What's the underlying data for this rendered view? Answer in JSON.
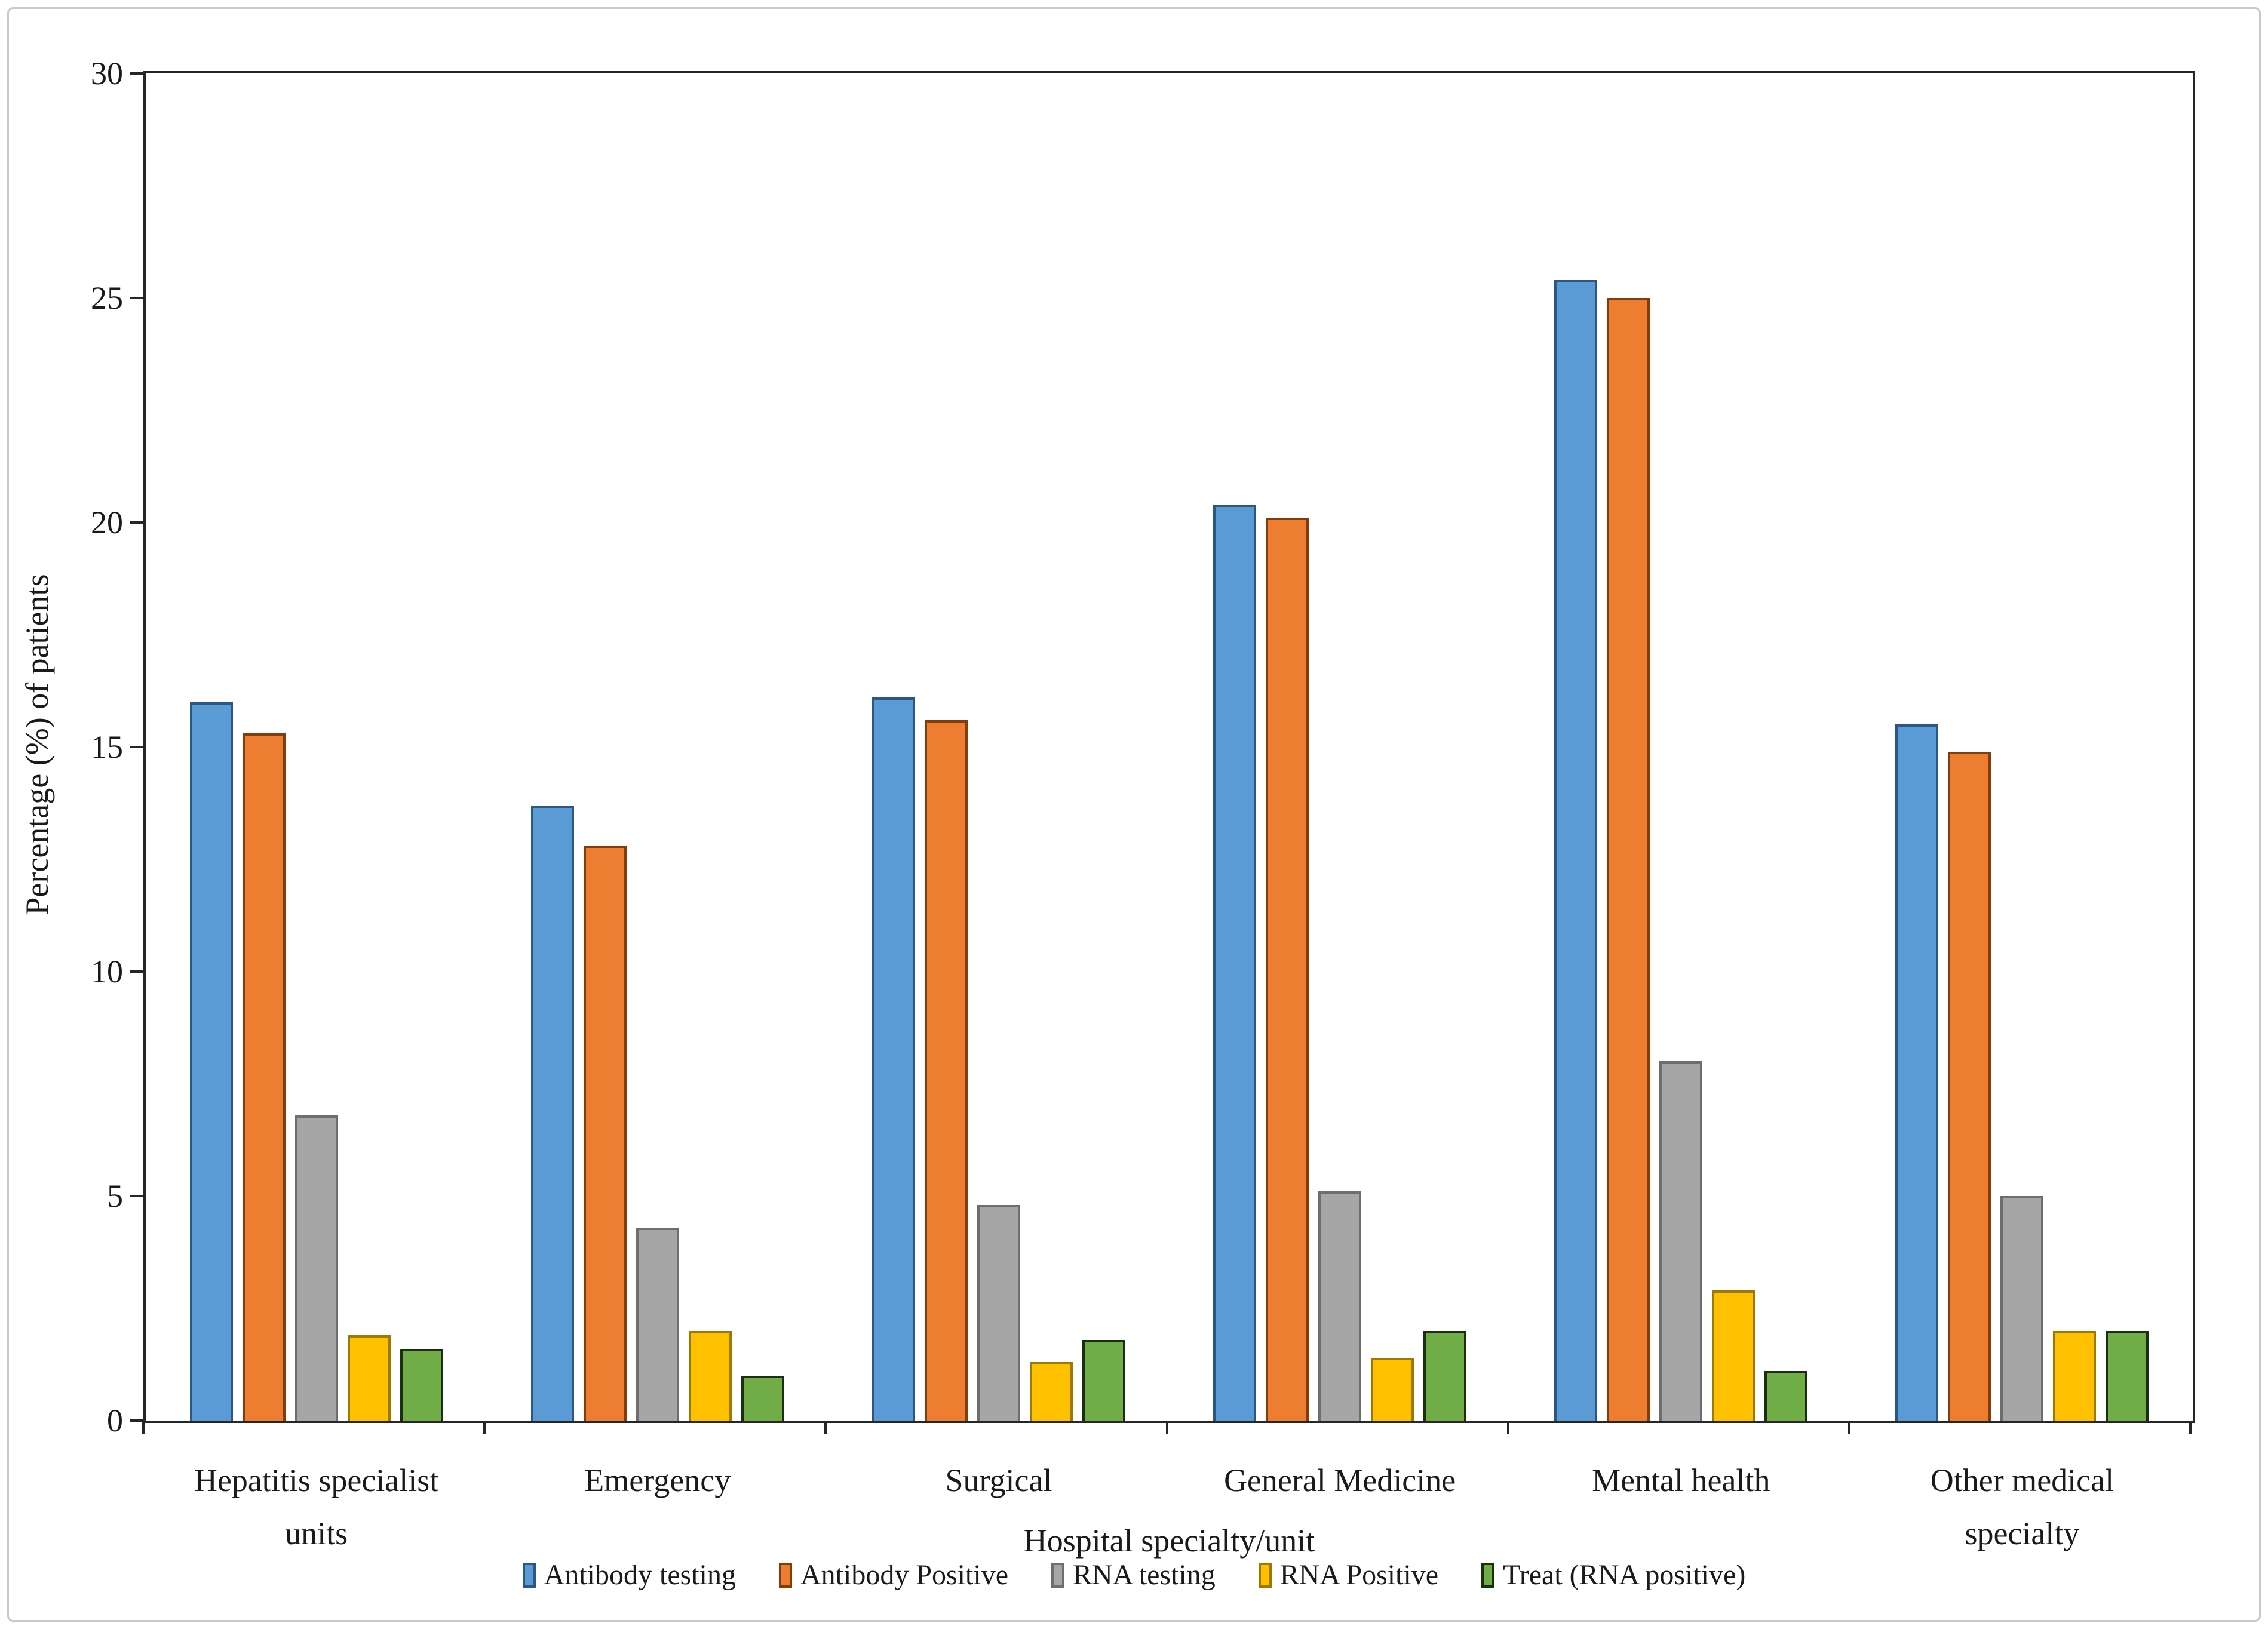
{
  "figure": {
    "background": "#ffffff",
    "frame_border_color": "#c9c9c9",
    "axis_color": "#262626"
  },
  "chart_data": {
    "type": "bar",
    "title": "",
    "xlabel": "Hospital specialty/unit",
    "ylabel": "Percentage (%) of patients",
    "ylim": [
      0,
      30
    ],
    "yticks": [
      0,
      5,
      10,
      15,
      20,
      25,
      30
    ],
    "grid": false,
    "legend_position": "bottom",
    "categories": [
      "Hepatitis specialist units",
      "Emergency",
      "Surgical",
      "General Medicine",
      "Mental health",
      "Other medical specialty"
    ],
    "series": [
      {
        "name": "Antibody testing",
        "fill": "#5B9BD5",
        "border": "#2A5783",
        "values": [
          16.0,
          13.7,
          16.1,
          20.4,
          25.4,
          15.5
        ]
      },
      {
        "name": "Antibody Positive",
        "fill": "#ED7D31",
        "border": "#833C0C",
        "values": [
          15.3,
          12.8,
          15.6,
          20.1,
          25.0,
          14.9
        ]
      },
      {
        "name": "RNA testing",
        "fill": "#A6A6A6",
        "border": "#6E6E6E",
        "values": [
          6.8,
          4.3,
          4.8,
          5.1,
          8.0,
          5.0
        ]
      },
      {
        "name": "RNA Positive",
        "fill": "#FFC000",
        "border": "#9C7A00",
        "values": [
          1.9,
          2.0,
          1.3,
          1.4,
          2.9,
          2.0
        ]
      },
      {
        "name": "Treat (RNA positive)",
        "fill": "#70AD47",
        "border": "#1B2E10",
        "values": [
          1.6,
          1.0,
          1.8,
          2.0,
          1.1,
          2.0
        ]
      }
    ]
  }
}
